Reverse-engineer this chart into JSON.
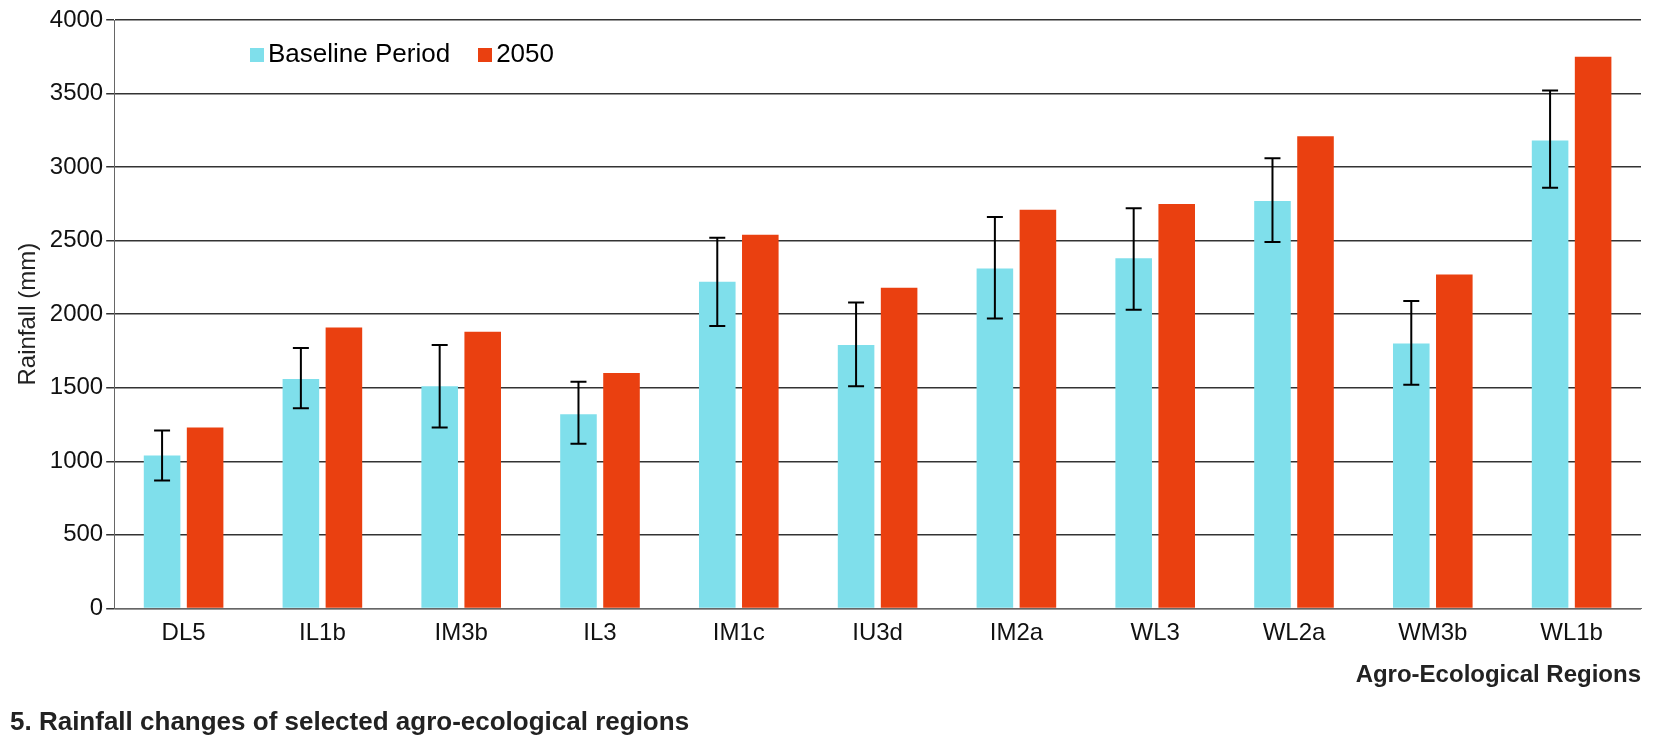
{
  "chart_data": {
    "type": "bar",
    "ylabel": "Rainfall (mm)",
    "xlabel": "Agro-Ecological Regions",
    "categories": [
      "DL5",
      "IL1b",
      "IM3b",
      "IL3",
      "IM1c",
      "IU3d",
      "IM2a",
      "WL3",
      "WL2a",
      "WM3b",
      "WL1b"
    ],
    "series": [
      {
        "name": "Baseline Period",
        "color": "#7fdfeb",
        "values": [
          1040,
          1560,
          1510,
          1320,
          2220,
          1790,
          2310,
          2380,
          2770,
          1800,
          3180
        ],
        "errors": [
          [
            870,
            1210
          ],
          [
            1360,
            1770
          ],
          [
            1230,
            1790
          ],
          [
            1120,
            1540
          ],
          [
            1920,
            2520
          ],
          [
            1510,
            2080
          ],
          [
            1970,
            2660
          ],
          [
            2030,
            2720
          ],
          [
            2490,
            3060
          ],
          [
            1520,
            2090
          ],
          [
            2860,
            3520
          ]
        ]
      },
      {
        "name": "2050",
        "color": "#ea4010",
        "values": [
          1230,
          1910,
          1880,
          1600,
          2540,
          2180,
          2710,
          2750,
          3210,
          2270,
          3750
        ]
      }
    ],
    "ylim": [
      0,
      4000
    ],
    "yticks": [
      0,
      500,
      1000,
      1500,
      2000,
      2500,
      3000,
      3500,
      4000
    ],
    "grid": "y",
    "legend": "top left",
    "annotations": [
      "5. Rainfall changes of selected agro-ecological regions"
    ]
  }
}
